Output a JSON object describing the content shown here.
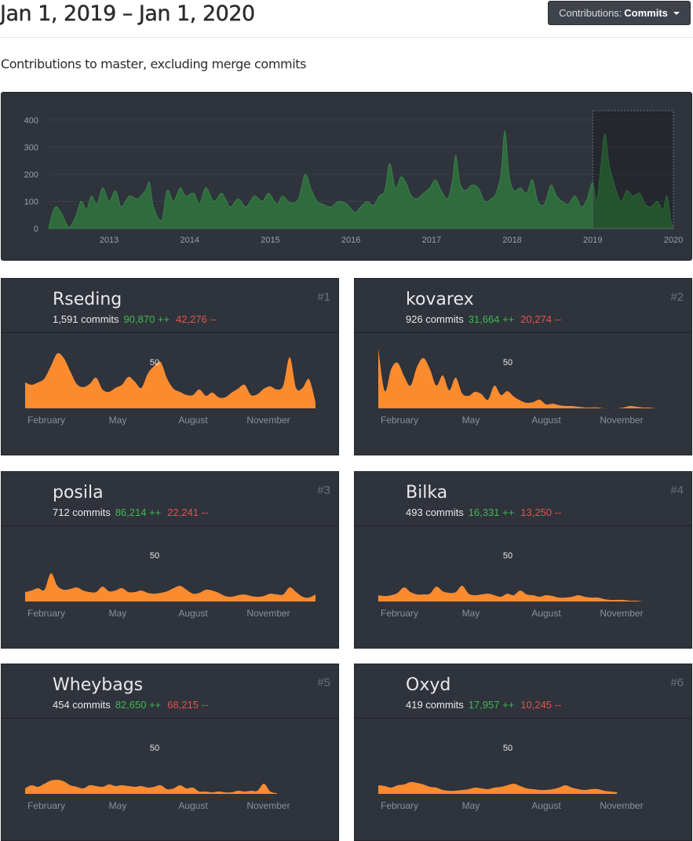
{
  "header": {
    "title": "Jan 1, 2019 – Jan 1, 2020",
    "dropdown_prefix": "Contributions:",
    "dropdown_value": "Commits"
  },
  "subtitle": "Contributions to master, excluding merge commits",
  "colors": {
    "overview_area": "#2f6b3c",
    "contributor_area": "#fb8b2f",
    "additions": "#3fb950",
    "deletions": "#e5534b"
  },
  "chart_data": [
    {
      "type": "area",
      "name": "overview",
      "x_ticks": [
        "2013",
        "2014",
        "2015",
        "2016",
        "2017",
        "2018",
        "2019",
        "2020"
      ],
      "y_ticks": [
        0,
        100,
        200,
        300,
        400
      ],
      "ylim": [
        0,
        420
      ],
      "x_range": [
        2012.25,
        2020.0
      ],
      "selected_range": [
        2019.0,
        2020.0
      ],
      "points": [
        [
          2012.25,
          0
        ],
        [
          2012.3,
          60
        ],
        [
          2012.35,
          80
        ],
        [
          2012.42,
          50
        ],
        [
          2012.5,
          5
        ],
        [
          2012.58,
          40
        ],
        [
          2012.65,
          100
        ],
        [
          2012.72,
          70
        ],
        [
          2012.78,
          120
        ],
        [
          2012.85,
          90
        ],
        [
          2012.92,
          150
        ],
        [
          2013.0,
          100
        ],
        [
          2013.08,
          140
        ],
        [
          2013.15,
          80
        ],
        [
          2013.25,
          120
        ],
        [
          2013.35,
          110
        ],
        [
          2013.45,
          140
        ],
        [
          2013.5,
          170
        ],
        [
          2013.55,
          80
        ],
        [
          2013.65,
          30
        ],
        [
          2013.72,
          140
        ],
        [
          2013.8,
          100
        ],
        [
          2013.88,
          150
        ],
        [
          2013.95,
          120
        ],
        [
          2014.05,
          130
        ],
        [
          2014.12,
          90
        ],
        [
          2014.2,
          150
        ],
        [
          2014.3,
          100
        ],
        [
          2014.4,
          130
        ],
        [
          2014.5,
          80
        ],
        [
          2014.6,
          110
        ],
        [
          2014.7,
          80
        ],
        [
          2014.8,
          120
        ],
        [
          2014.9,
          100
        ],
        [
          2014.98,
          130
        ],
        [
          2015.08,
          90
        ],
        [
          2015.15,
          120
        ],
        [
          2015.25,
          95
        ],
        [
          2015.35,
          110
        ],
        [
          2015.43,
          200
        ],
        [
          2015.5,
          150
        ],
        [
          2015.58,
          100
        ],
        [
          2015.65,
          90
        ],
        [
          2015.75,
          80
        ],
        [
          2015.85,
          100
        ],
        [
          2015.95,
          90
        ],
        [
          2016.05,
          60
        ],
        [
          2016.12,
          80
        ],
        [
          2016.2,
          100
        ],
        [
          2016.28,
          85
        ],
        [
          2016.35,
          120
        ],
        [
          2016.42,
          140
        ],
        [
          2016.48,
          240
        ],
        [
          2016.55,
          150
        ],
        [
          2016.62,
          190
        ],
        [
          2016.68,
          170
        ],
        [
          2016.75,
          120
        ],
        [
          2016.82,
          110
        ],
        [
          2016.9,
          130
        ],
        [
          2016.98,
          150
        ],
        [
          2017.05,
          180
        ],
        [
          2017.12,
          140
        ],
        [
          2017.2,
          110
        ],
        [
          2017.26,
          180
        ],
        [
          2017.3,
          270
        ],
        [
          2017.35,
          170
        ],
        [
          2017.42,
          140
        ],
        [
          2017.5,
          160
        ],
        [
          2017.58,
          150
        ],
        [
          2017.66,
          100
        ],
        [
          2017.74,
          110
        ],
        [
          2017.8,
          130
        ],
        [
          2017.86,
          200
        ],
        [
          2017.91,
          360
        ],
        [
          2017.96,
          200
        ],
        [
          2018.02,
          140
        ],
        [
          2018.1,
          150
        ],
        [
          2018.18,
          130
        ],
        [
          2018.25,
          180
        ],
        [
          2018.32,
          100
        ],
        [
          2018.4,
          90
        ],
        [
          2018.48,
          160
        ],
        [
          2018.55,
          120
        ],
        [
          2018.62,
          100
        ],
        [
          2018.7,
          90
        ],
        [
          2018.78,
          120
        ],
        [
          2018.86,
          80
        ],
        [
          2018.93,
          110
        ],
        [
          2019.0,
          170
        ],
        [
          2019.05,
          100
        ],
        [
          2019.1,
          230
        ],
        [
          2019.15,
          350
        ],
        [
          2019.2,
          240
        ],
        [
          2019.27,
          160
        ],
        [
          2019.35,
          100
        ],
        [
          2019.42,
          140
        ],
        [
          2019.5,
          120
        ],
        [
          2019.58,
          130
        ],
        [
          2019.65,
          90
        ],
        [
          2019.72,
          80
        ],
        [
          2019.8,
          100
        ],
        [
          2019.87,
          70
        ],
        [
          2019.92,
          120
        ],
        [
          2019.97,
          30
        ],
        [
          2020.0,
          0
        ]
      ]
    },
    {
      "type": "area",
      "name": "contributor-1",
      "x_ticks": [
        "February",
        "May",
        "August",
        "November"
      ],
      "y_ticks": [
        50
      ],
      "ylim": [
        0,
        80
      ],
      "values": [
        33,
        30,
        33,
        38,
        54,
        70,
        64,
        47,
        31,
        27,
        31,
        39,
        24,
        21,
        26,
        30,
        40,
        34,
        26,
        44,
        54,
        59,
        38,
        25,
        21,
        17,
        17,
        24,
        16,
        20,
        14,
        14,
        20,
        25,
        30,
        17,
        18,
        25,
        28,
        24,
        29,
        65,
        26,
        26,
        37,
        8
      ]
    },
    {
      "type": "area",
      "name": "contributor-2",
      "x_ticks": [
        "February",
        "May",
        "August",
        "November"
      ],
      "y_ticks": [
        50
      ],
      "ylim": [
        0,
        80
      ],
      "values": [
        76,
        22,
        50,
        58,
        41,
        29,
        53,
        64,
        50,
        29,
        42,
        23,
        39,
        19,
        16,
        21,
        18,
        11,
        29,
        17,
        22,
        15,
        10,
        7,
        8,
        11,
        5,
        6,
        4,
        3,
        3,
        2,
        1,
        1,
        1,
        0,
        0,
        0,
        1,
        3,
        2,
        1,
        1,
        0
      ]
    },
    {
      "type": "area",
      "name": "contributor-3",
      "x_ticks": [
        "February",
        "May",
        "August",
        "November"
      ],
      "y_ticks": [
        50
      ],
      "ylim": [
        0,
        80
      ],
      "values": [
        12,
        14,
        17,
        15,
        36,
        20,
        15,
        16,
        18,
        14,
        12,
        12,
        19,
        13,
        14,
        17,
        12,
        12,
        14,
        11,
        10,
        11,
        13,
        17,
        20,
        15,
        10,
        11,
        15,
        14,
        11,
        7,
        6,
        8,
        9,
        7,
        6,
        7,
        10,
        9,
        9,
        18,
        12,
        6,
        5,
        9
      ]
    },
    {
      "type": "area",
      "name": "contributor-4",
      "x_ticks": [
        "February",
        "May",
        "August",
        "November"
      ],
      "y_ticks": [
        50
      ],
      "ylim": [
        0,
        80
      ],
      "values": [
        8,
        7,
        8,
        11,
        18,
        12,
        9,
        9,
        10,
        19,
        13,
        11,
        12,
        20,
        10,
        8,
        9,
        10,
        8,
        6,
        10,
        8,
        14,
        9,
        8,
        6,
        8,
        7,
        5,
        5,
        6,
        8,
        6,
        5,
        5,
        3,
        2,
        2,
        2,
        1,
        1,
        0
      ]
    },
    {
      "type": "area",
      "name": "contributor-5",
      "x_ticks": [
        "February",
        "May",
        "August",
        "November"
      ],
      "y_ticks": [
        50
      ],
      "ylim": [
        0,
        80
      ],
      "values": [
        7,
        11,
        9,
        13,
        17,
        18,
        16,
        11,
        9,
        7,
        11,
        10,
        9,
        12,
        10,
        11,
        10,
        9,
        10,
        8,
        9,
        11,
        6,
        7,
        11,
        7,
        8,
        3,
        3,
        2,
        3,
        2,
        2,
        4,
        3,
        4,
        4,
        13,
        3,
        1
      ]
    },
    {
      "type": "area",
      "name": "contributor-6",
      "x_ticks": [
        "February",
        "May",
        "August",
        "November"
      ],
      "y_ticks": [
        50
      ],
      "ylim": [
        0,
        80
      ],
      "values": [
        11,
        10,
        8,
        11,
        12,
        15,
        14,
        12,
        9,
        8,
        5,
        4,
        4,
        5,
        6,
        8,
        7,
        6,
        8,
        9,
        11,
        13,
        10,
        7,
        6,
        5,
        5,
        6,
        8,
        11,
        8,
        6,
        5,
        6,
        6,
        4,
        3,
        2
      ]
    }
  ],
  "contributors": [
    {
      "rank": "#1",
      "name": "Rseding",
      "commits": "1,591 commits",
      "additions": "90,870 ++",
      "deletions": "42,276 --"
    },
    {
      "rank": "#2",
      "name": "kovarex",
      "commits": "926 commits",
      "additions": "31,664 ++",
      "deletions": "20,274 --"
    },
    {
      "rank": "#3",
      "name": "posila",
      "commits": "712 commits",
      "additions": "86,214 ++",
      "deletions": "22,241 --"
    },
    {
      "rank": "#4",
      "name": "Bilka",
      "commits": "493 commits",
      "additions": "16,331 ++",
      "deletions": "13,250 --"
    },
    {
      "rank": "#5",
      "name": "Wheybags",
      "commits": "454 commits",
      "additions": "82,650 ++",
      "deletions": "68,215 --"
    },
    {
      "rank": "#6",
      "name": "Oxyd",
      "commits": "419 commits",
      "additions": "17,957 ++",
      "deletions": "10,245 --"
    }
  ]
}
